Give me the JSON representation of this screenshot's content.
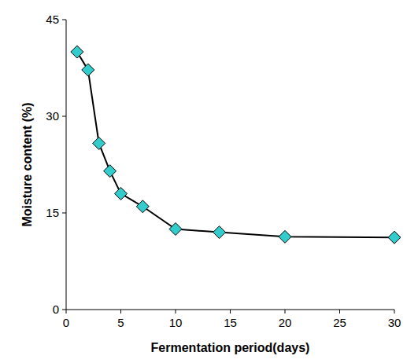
{
  "chart_data": {
    "type": "line",
    "x_label": "Fermentation period(days)",
    "y_label": "Moisture content (%)",
    "x": [
      1,
      2,
      3,
      4,
      5,
      7,
      10,
      14,
      20,
      30
    ],
    "values": [
      40,
      37.2,
      25.8,
      21.5,
      18,
      16,
      12.5,
      12,
      11.3,
      11.2
    ],
    "color": "#33cccc",
    "marker": "diamond",
    "line_style": "solid",
    "xlim": [
      0,
      30
    ],
    "xticks": [
      0,
      5,
      10,
      15,
      20,
      25,
      30
    ],
    "ylim": [
      0,
      45
    ],
    "yticks": [
      0,
      15,
      30,
      45
    ],
    "grid": false
  }
}
